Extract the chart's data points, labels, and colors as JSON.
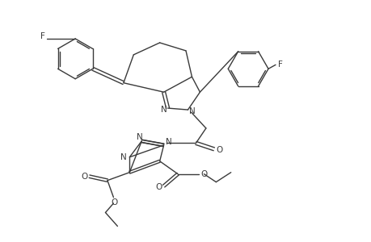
{
  "bg_color": "#ffffff",
  "line_color": "#3a3a3a",
  "line_width": 1.0,
  "font_size": 7.5,
  "fig_width": 4.6,
  "fig_height": 3.0,
  "dpi": 100,
  "xlim": [
    0,
    9.2
  ],
  "ylim": [
    0,
    6.0
  ]
}
